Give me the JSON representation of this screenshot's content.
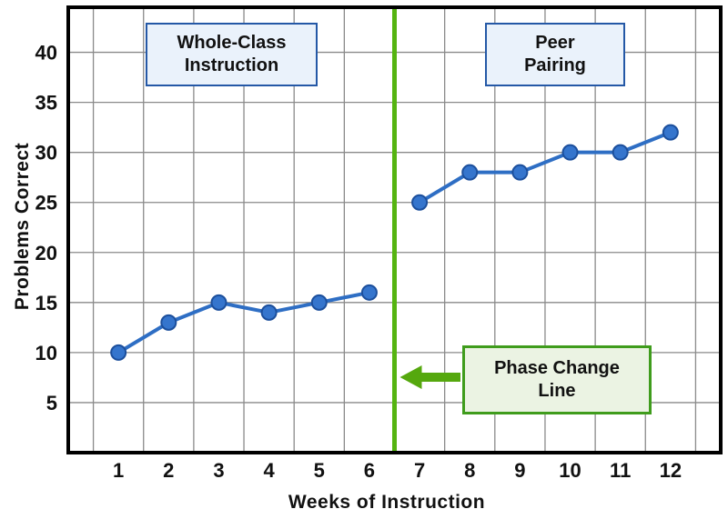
{
  "chart_data": {
    "type": "line",
    "title": "",
    "xlabel": "Weeks of Instruction",
    "ylabel": "Problems Correct",
    "x_ticks": [
      1,
      2,
      3,
      4,
      5,
      6,
      7,
      8,
      9,
      10,
      11,
      12
    ],
    "y_ticks": [
      5,
      10,
      15,
      20,
      25,
      30,
      35,
      40
    ],
    "xlim": [
      0,
      13
    ],
    "ylim": [
      0,
      44.5
    ],
    "grid": true,
    "legend_position": "none",
    "series": [
      {
        "name": "Whole-Class Instruction",
        "x": [
          1,
          2,
          3,
          4,
          5,
          6
        ],
        "values": [
          10,
          13,
          15,
          14,
          15,
          16
        ]
      },
      {
        "name": "Peer Pairing",
        "x": [
          7,
          8,
          9,
          10,
          11,
          12
        ],
        "values": [
          25,
          28,
          28,
          30,
          30,
          32
        ]
      }
    ],
    "phase_change_x": 6.5,
    "annotations": {
      "whole_class": "Whole-Class\nInstruction",
      "peer_pairing": "Peer\nPairing",
      "phase_change": "Phase Change\nLine"
    },
    "colors": {
      "line": "#2e6ec4",
      "marker_fill": "#3575cd",
      "marker_stroke": "#1c4f9c",
      "phase_line": "#55b411",
      "arrow": "#55a80e",
      "box_blue_border": "#2458a6",
      "box_blue_bg": "#eaf2fb",
      "box_green_border": "#3f9c1c",
      "box_green_bg": "#ebf3e3",
      "grid": "#8a8a8a",
      "border": "#000000"
    }
  }
}
